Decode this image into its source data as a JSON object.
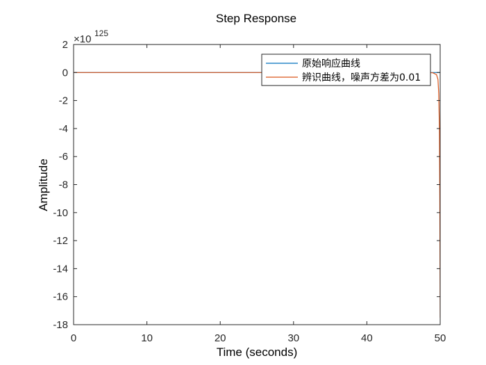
{
  "chart_data": {
    "type": "line",
    "title": "Step Response",
    "xlabel": "Time (seconds)",
    "ylabel": "Amplitude",
    "xlim": [
      0,
      50
    ],
    "ylim": [
      -18,
      2
    ],
    "xticks": [
      0,
      10,
      20,
      30,
      40,
      50
    ],
    "yticks": [
      2,
      0,
      -2,
      -4,
      -6,
      -8,
      -10,
      -12,
      -14,
      -16,
      -18
    ],
    "y_multiplier": {
      "base": "×10",
      "exponent": "125"
    },
    "grid": false,
    "legend_position": "top-right",
    "series": [
      {
        "name": "原始响应曲线",
        "color": "#0072BD",
        "x": [
          0,
          50
        ],
        "y": [
          0,
          0
        ]
      },
      {
        "name": "辨识曲线，噪声方差为0.01",
        "color": "#D95319",
        "x": [
          0,
          48,
          49,
          49.5,
          49.7,
          49.8,
          49.9,
          49.95,
          50
        ],
        "y": [
          0,
          0,
          -0.02,
          -0.15,
          -0.5,
          -1.5,
          -4,
          -9,
          -17.5
        ]
      }
    ]
  }
}
